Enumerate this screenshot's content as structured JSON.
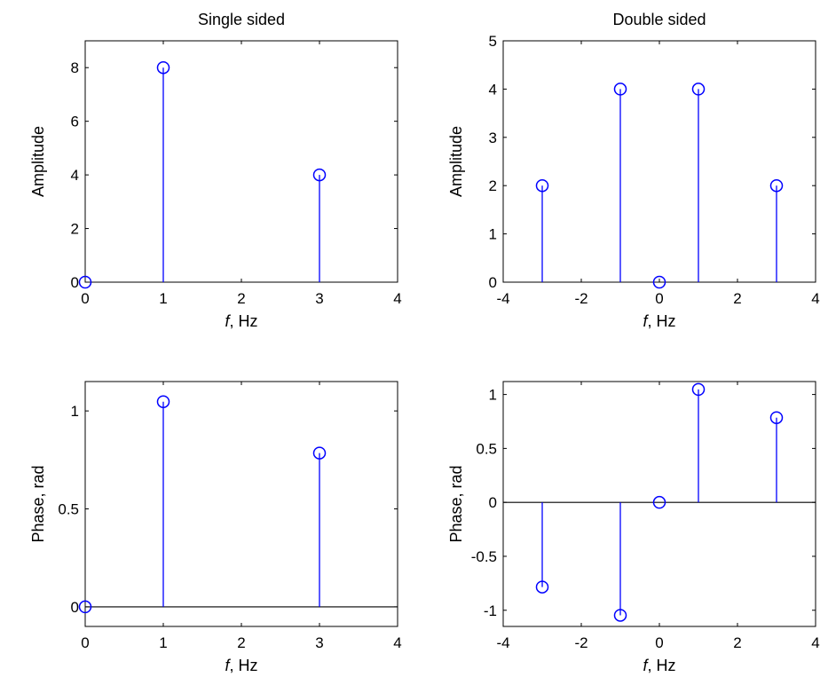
{
  "colors": {
    "stem": "#0000ff",
    "axis": "#000000",
    "background": "#ffffff"
  },
  "chart_data": [
    {
      "type": "stem",
      "title": "Single sided",
      "xlabel_italic": "f",
      "xlabel_rest": ", Hz",
      "ylabel": "Amplitude",
      "xlim": [
        0,
        4
      ],
      "ylim": [
        0,
        9
      ],
      "xticks": [
        0,
        1,
        2,
        3,
        4
      ],
      "yticks": [
        0,
        2,
        4,
        6,
        8
      ],
      "x": [
        0,
        1,
        3
      ],
      "y": [
        0,
        8,
        4
      ],
      "baseline": false,
      "grid": false
    },
    {
      "type": "stem",
      "title": "Double sided",
      "xlabel_italic": "f",
      "xlabel_rest": ", Hz",
      "ylabel": "Amplitude",
      "xlim": [
        -4,
        4
      ],
      "ylim": [
        0,
        5
      ],
      "xticks": [
        -4,
        -2,
        0,
        2,
        4
      ],
      "yticks": [
        0,
        1,
        2,
        3,
        4,
        5
      ],
      "x": [
        -3,
        -1,
        0,
        1,
        3
      ],
      "y": [
        2,
        4,
        0,
        4,
        2
      ],
      "baseline": false,
      "grid": false
    },
    {
      "type": "stem",
      "title": "",
      "xlabel_italic": "f",
      "xlabel_rest": ", Hz",
      "ylabel": "Phase, rad",
      "xlim": [
        0,
        4
      ],
      "ylim": [
        -0.1,
        1.15
      ],
      "xticks": [
        0,
        1,
        2,
        3,
        4
      ],
      "yticks": [
        0,
        0.5,
        1
      ],
      "x": [
        0,
        1,
        3
      ],
      "y": [
        0,
        1.047,
        0.785
      ],
      "baseline": true,
      "grid": false
    },
    {
      "type": "stem",
      "title": "",
      "xlabel_italic": "f",
      "xlabel_rest": ", Hz",
      "ylabel": "Phase, rad",
      "xlim": [
        -4,
        4
      ],
      "ylim": [
        -1.15,
        1.12
      ],
      "xticks": [
        -4,
        -2,
        0,
        2,
        4
      ],
      "yticks": [
        -1,
        -0.5,
        0,
        0.5,
        1
      ],
      "x": [
        -3,
        -1,
        0,
        1,
        3
      ],
      "y": [
        -0.785,
        -1.047,
        0,
        1.047,
        0.785
      ],
      "baseline": true,
      "grid": false
    }
  ]
}
